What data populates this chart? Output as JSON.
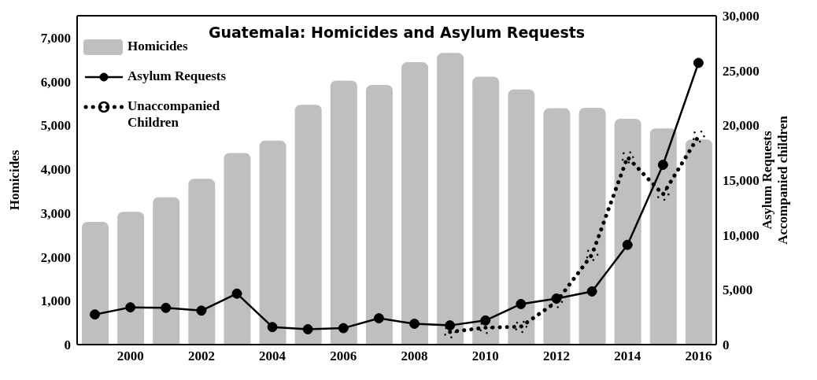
{
  "chart_data": {
    "type": "bar",
    "title": "Guatemala: Homicides and Asylum Requests",
    "ylabel": "Homicides",
    "y2label": "Asylum Requests\nAccompanied children",
    "categories": [
      null,
      "2000",
      null,
      "2002",
      null,
      "2004",
      null,
      "2006",
      null,
      "2008",
      null,
      "2010",
      null,
      "2012",
      null,
      "2014",
      null,
      "2016"
    ],
    "series": [
      {
        "name": "Homicides",
        "type": "bar",
        "color": "#bfbfbf",
        "values": [
          2800,
          3030,
          3360,
          3780,
          4370,
          4650,
          5470,
          6020,
          5920,
          6440,
          6650,
          6110,
          5820,
          5390,
          5400,
          5150,
          4930,
          4680
        ]
      },
      {
        "name": "Asylum Requests",
        "type": "line",
        "axis": "y2",
        "color": "#000000",
        "marker": "circle",
        "line_style": "solid",
        "values": [
          2750,
          3400,
          3350,
          3100,
          4650,
          1600,
          1400,
          1500,
          2400,
          1900,
          1750,
          2200,
          3700,
          4200,
          4850,
          9100,
          16400,
          25700
        ]
      },
      {
        "name": "Unaccompanied Children",
        "type": "line",
        "axis": "y2",
        "color": "#000000",
        "marker": "circle",
        "line_style": "dotted",
        "values": [
          null,
          null,
          null,
          null,
          null,
          null,
          null,
          null,
          null,
          null,
          1150,
          1550,
          1640,
          3900,
          8200,
          17100,
          13700,
          19000
        ]
      }
    ],
    "ylim": [
      0,
      7500
    ],
    "yticks": [
      0,
      {
        "value": 1000,
        "label": "1,000"
      },
      {
        "value": 2000,
        "label": "2,000"
      },
      {
        "value": 3000,
        "label": "3,000"
      },
      {
        "value": 4000,
        "label": "4,000"
      },
      {
        "value": 5000,
        "label": "5,000"
      },
      {
        "value": 6000,
        "label": "6,000"
      },
      {
        "value": 7000,
        "label": "7,000"
      }
    ],
    "y2lim": [
      0,
      30000
    ],
    "y2ticks": [
      0,
      {
        "value": 5000,
        "label": "5,000"
      },
      {
        "value": 10000,
        "label": "10,000"
      },
      {
        "value": 15000,
        "label": "15,000"
      },
      {
        "value": 20000,
        "label": "20,000"
      },
      {
        "value": 25000,
        "label": "25,000"
      },
      {
        "value": 30000,
        "label": "30,000"
      }
    ],
    "grid": false,
    "legend": "top left"
  }
}
